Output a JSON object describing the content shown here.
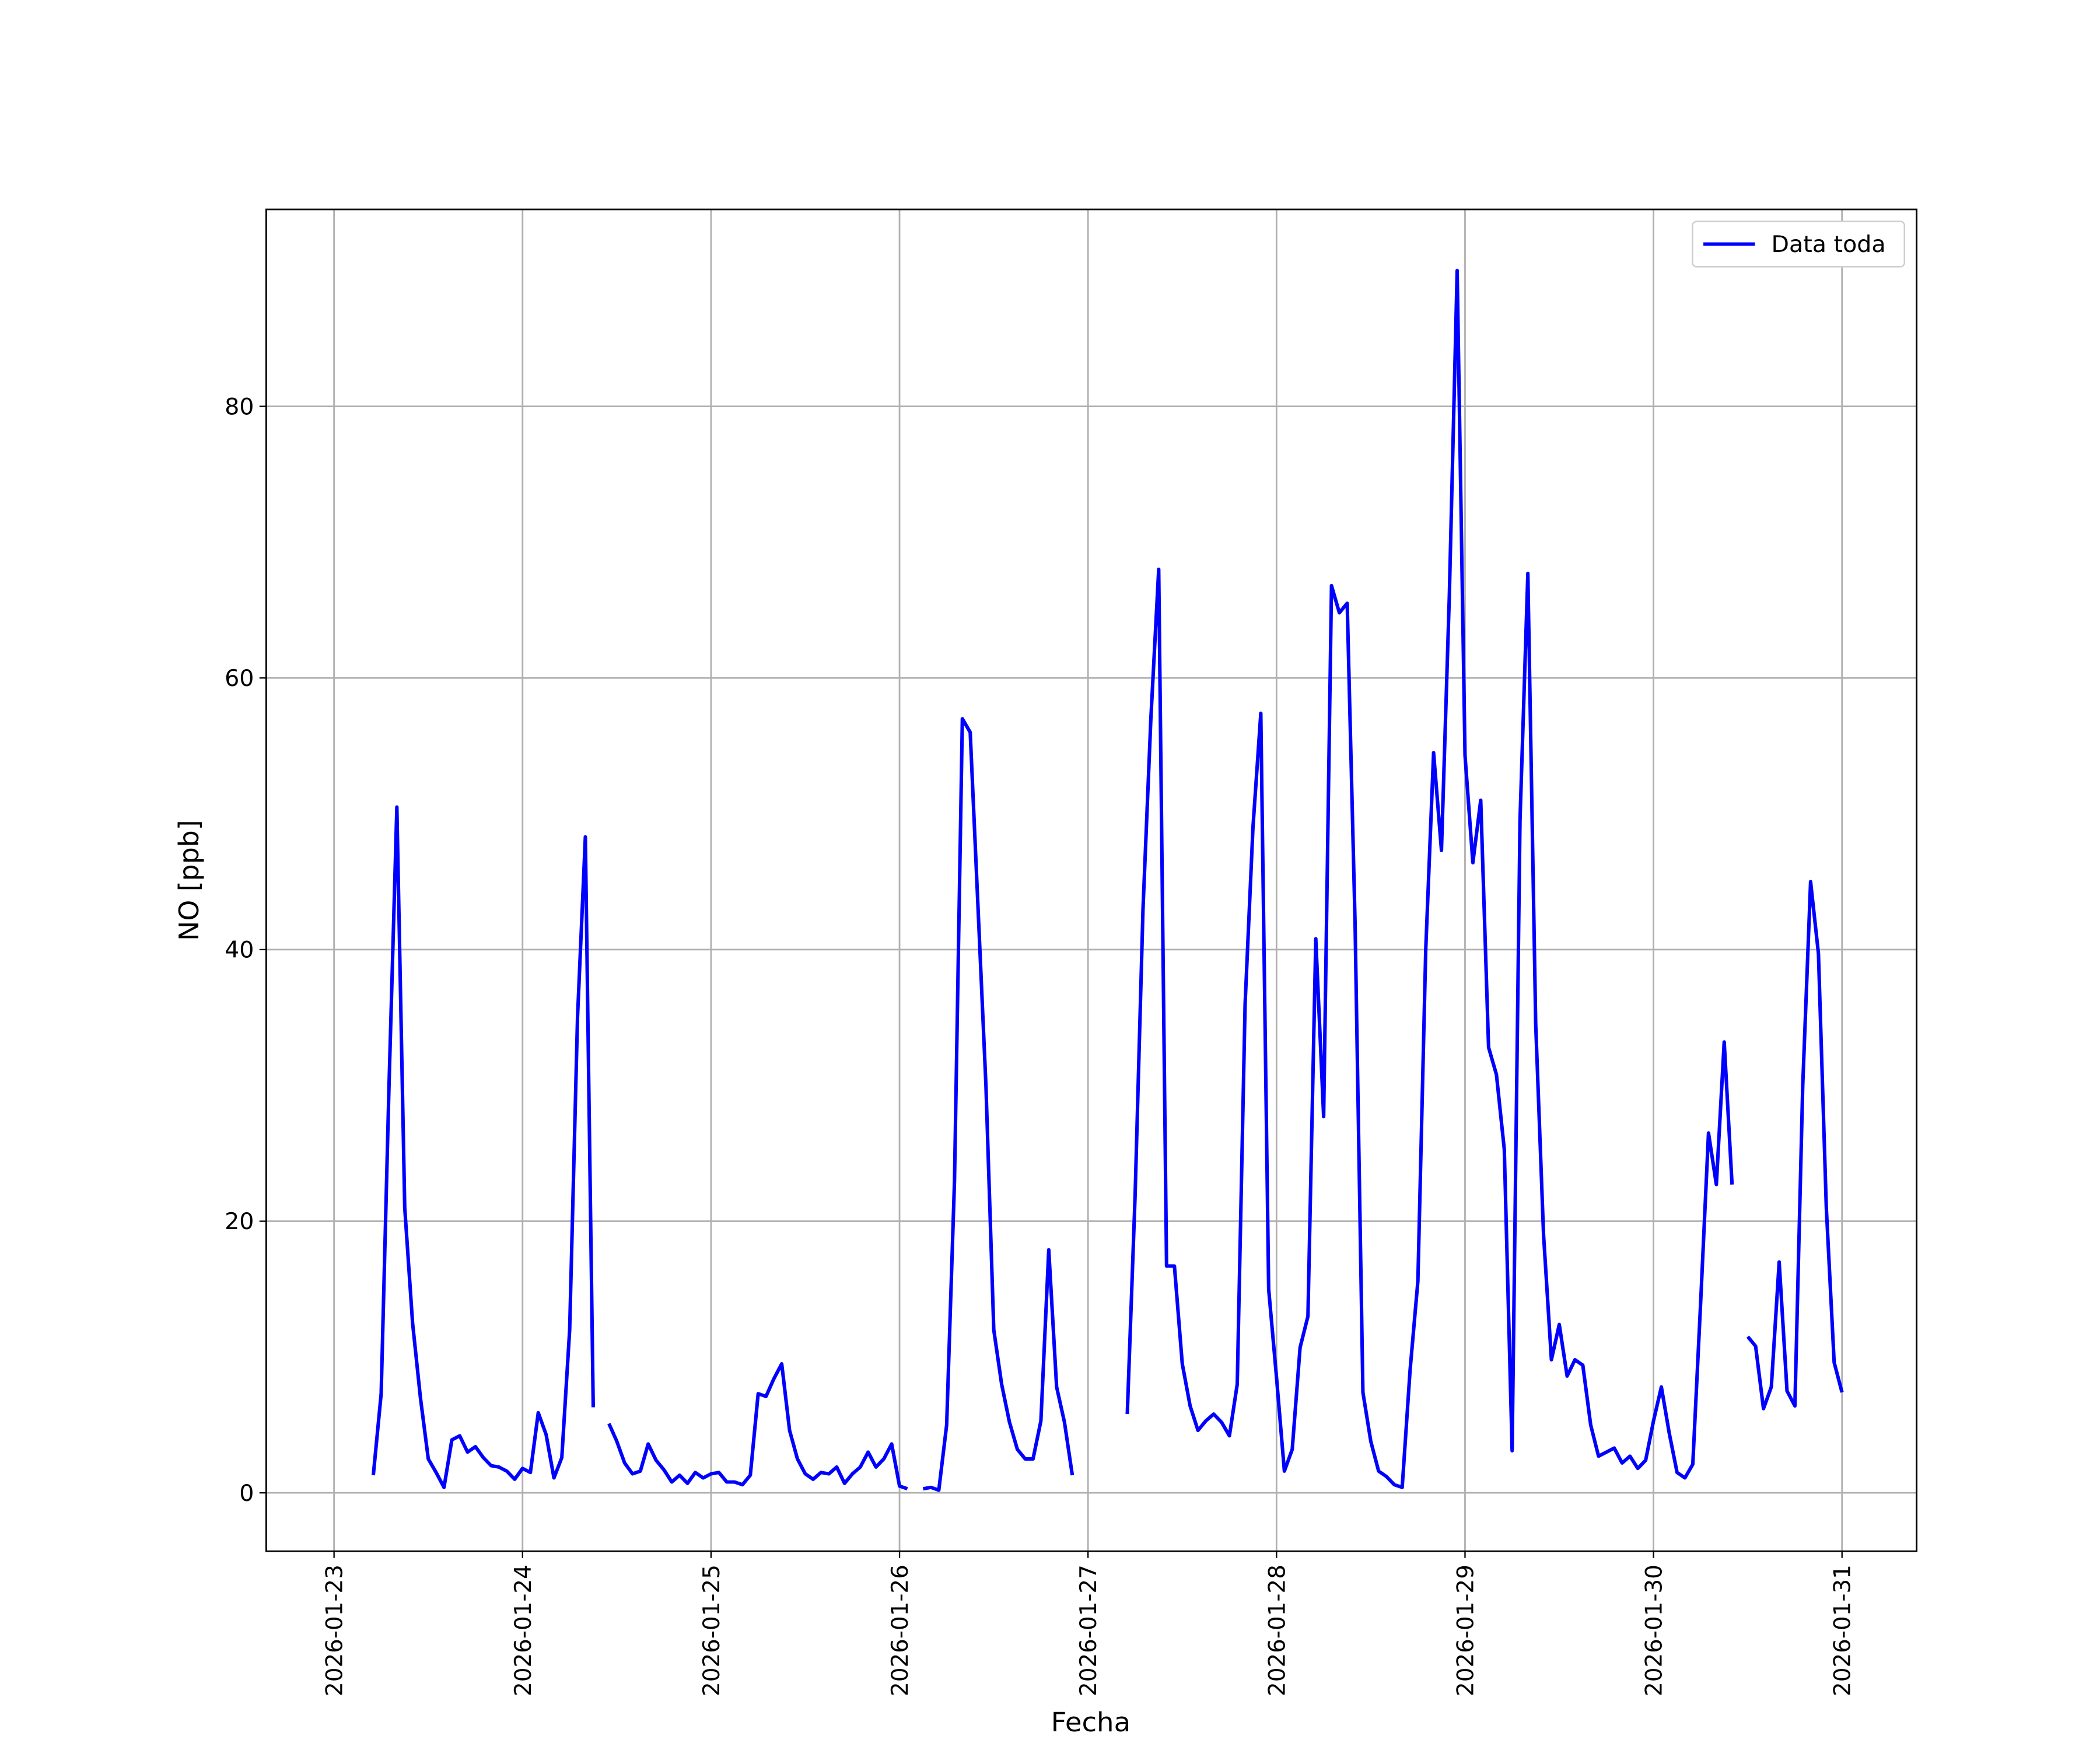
{
  "chart_data": {
    "type": "line",
    "xlabel": "Fecha",
    "ylabel": "NO [ppb]",
    "x": [
      "2026-01-23 05:00",
      "2026-01-23 06:00",
      "2026-01-23 07:00",
      "2026-01-23 08:00",
      "2026-01-23 09:00",
      "2026-01-23 10:00",
      "2026-01-23 11:00",
      "2026-01-23 12:00",
      "2026-01-23 13:00",
      "2026-01-23 14:00",
      "2026-01-23 15:00",
      "2026-01-23 16:00",
      "2026-01-23 17:00",
      "2026-01-23 18:00",
      "2026-01-23 19:00",
      "2026-01-23 20:00",
      "2026-01-23 21:00",
      "2026-01-23 22:00",
      "2026-01-23 23:00",
      "2026-01-24 00:00",
      "2026-01-24 01:00",
      "2026-01-24 02:00",
      "2026-01-24 03:00",
      "2026-01-24 04:00",
      "2026-01-24 05:00",
      "2026-01-24 06:00",
      "2026-01-24 07:00",
      "2026-01-24 08:00",
      "2026-01-24 09:00",
      "2026-01-24 10:00",
      "2026-01-24 11:00",
      "2026-01-24 12:00",
      "2026-01-24 13:00",
      "2026-01-24 14:00",
      "2026-01-24 15:00",
      "2026-01-24 16:00",
      "2026-01-24 17:00",
      "2026-01-24 18:00",
      "2026-01-24 19:00",
      "2026-01-24 20:00",
      "2026-01-24 21:00",
      "2026-01-24 22:00",
      "2026-01-24 23:00",
      "2026-01-25 00:00",
      "2026-01-25 01:00",
      "2026-01-25 02:00",
      "2026-01-25 03:00",
      "2026-01-25 04:00",
      "2026-01-25 05:00",
      "2026-01-25 06:00",
      "2026-01-25 07:00",
      "2026-01-25 08:00",
      "2026-01-25 09:00",
      "2026-01-25 10:00",
      "2026-01-25 11:00",
      "2026-01-25 12:00",
      "2026-01-25 13:00",
      "2026-01-25 14:00",
      "2026-01-25 15:00",
      "2026-01-25 16:00",
      "2026-01-25 17:00",
      "2026-01-25 18:00",
      "2026-01-25 19:00",
      "2026-01-25 20:00",
      "2026-01-25 21:00",
      "2026-01-25 22:00",
      "2026-01-25 23:00",
      "2026-01-26 00:00",
      "2026-01-26 01:00",
      "2026-01-26 02:00",
      "2026-01-26 03:00",
      "2026-01-26 04:00",
      "2026-01-26 05:00",
      "2026-01-26 06:00",
      "2026-01-26 07:00",
      "2026-01-26 08:00",
      "2026-01-26 09:00",
      "2026-01-26 10:00",
      "2026-01-26 11:00",
      "2026-01-26 12:00",
      "2026-01-26 13:00",
      "2026-01-26 14:00",
      "2026-01-26 15:00",
      "2026-01-26 16:00",
      "2026-01-26 17:00",
      "2026-01-26 18:00",
      "2026-01-26 19:00",
      "2026-01-26 20:00",
      "2026-01-26 21:00",
      "2026-01-26 22:00",
      "2026-01-26 23:00",
      "2026-01-27 00:00",
      "2026-01-27 01:00",
      "2026-01-27 02:00",
      "2026-01-27 03:00",
      "2026-01-27 04:00",
      "2026-01-27 05:00",
      "2026-01-27 06:00",
      "2026-01-27 07:00",
      "2026-01-27 08:00",
      "2026-01-27 09:00",
      "2026-01-27 10:00",
      "2026-01-27 11:00",
      "2026-01-27 12:00",
      "2026-01-27 13:00",
      "2026-01-27 14:00",
      "2026-01-27 15:00",
      "2026-01-27 16:00",
      "2026-01-27 17:00",
      "2026-01-27 18:00",
      "2026-01-27 19:00",
      "2026-01-27 20:00",
      "2026-01-27 21:00",
      "2026-01-27 22:00",
      "2026-01-27 23:00",
      "2026-01-28 00:00",
      "2026-01-28 01:00",
      "2026-01-28 02:00",
      "2026-01-28 03:00",
      "2026-01-28 04:00",
      "2026-01-28 05:00",
      "2026-01-28 06:00",
      "2026-01-28 07:00",
      "2026-01-28 08:00",
      "2026-01-28 09:00",
      "2026-01-28 10:00",
      "2026-01-28 11:00",
      "2026-01-28 12:00",
      "2026-01-28 13:00",
      "2026-01-28 14:00",
      "2026-01-28 15:00",
      "2026-01-28 16:00",
      "2026-01-28 17:00",
      "2026-01-28 18:00",
      "2026-01-28 19:00",
      "2026-01-28 20:00",
      "2026-01-28 21:00",
      "2026-01-28 22:00",
      "2026-01-28 23:00",
      "2026-01-29 00:00",
      "2026-01-29 01:00",
      "2026-01-29 02:00",
      "2026-01-29 03:00",
      "2026-01-29 04:00",
      "2026-01-29 05:00",
      "2026-01-29 06:00",
      "2026-01-29 07:00",
      "2026-01-29 08:00",
      "2026-01-29 09:00",
      "2026-01-29 10:00",
      "2026-01-29 11:00",
      "2026-01-29 12:00",
      "2026-01-29 13:00",
      "2026-01-29 14:00",
      "2026-01-29 15:00",
      "2026-01-29 16:00",
      "2026-01-29 17:00",
      "2026-01-29 18:00",
      "2026-01-29 19:00",
      "2026-01-29 20:00",
      "2026-01-29 21:00",
      "2026-01-29 22:00",
      "2026-01-29 23:00",
      "2026-01-30 00:00",
      "2026-01-30 01:00",
      "2026-01-30 02:00",
      "2026-01-30 03:00",
      "2026-01-30 04:00",
      "2026-01-30 05:00",
      "2026-01-30 06:00",
      "2026-01-30 07:00",
      "2026-01-30 08:00",
      "2026-01-30 09:00",
      "2026-01-30 10:00",
      "2026-01-30 11:00",
      "2026-01-30 12:00",
      "2026-01-30 13:00",
      "2026-01-30 14:00",
      "2026-01-30 15:00",
      "2026-01-30 16:00",
      "2026-01-30 17:00",
      "2026-01-30 18:00",
      "2026-01-30 19:00",
      "2026-01-30 20:00",
      "2026-01-30 21:00",
      "2026-01-30 22:00",
      "2026-01-30 23:00",
      "2026-01-31 00:00"
    ],
    "series": [
      {
        "name": "Data toda",
        "color": "#0000ff",
        "values": [
          1.3,
          7.3,
          30,
          50.5,
          21,
          12.5,
          7,
          2.5,
          1.5,
          0.4,
          3.9,
          4.2,
          3,
          3.4,
          2.6,
          2.0,
          1.9,
          1.6,
          1.0,
          1.8,
          1.5,
          5.9,
          4.3,
          1.1,
          2.6,
          12,
          35,
          48.3,
          6.3,
          null,
          5.1,
          3.8,
          2.2,
          1.4,
          1.6,
          3.6,
          2.4,
          1.7,
          0.8,
          1.3,
          0.7,
          1.5,
          1.1,
          1.4,
          1.5,
          0.8,
          0.8,
          0.6,
          1.3,
          7.3,
          7.1,
          8.4,
          9.5,
          4.6,
          2.5,
          1.4,
          1.0,
          1.5,
          1.4,
          1.9,
          0.7,
          1.4,
          1.9,
          3.0,
          1.9,
          2.5,
          3.6,
          0.5,
          0.3,
          null,
          0.3,
          0.4,
          0.2,
          5.0,
          23,
          57,
          56,
          43,
          30,
          12,
          8,
          5.2,
          3.2,
          2.5,
          2.5,
          5.3,
          17.9,
          7.8,
          5.2,
          1.3,
          null,
          null,
          null,
          null,
          null,
          null,
          5.8,
          22,
          43,
          57,
          68,
          16.7,
          16.7,
          9.5,
          6.4,
          4.6,
          5.3,
          5.8,
          5.2,
          4.2,
          8,
          36,
          49,
          57.4,
          15,
          8.5,
          1.6,
          3.2,
          10.7,
          13,
          40.8,
          27.7,
          66.8,
          64.8,
          65.5,
          42,
          7.4,
          3.8,
          1.6,
          1.2,
          0.6,
          0.4,
          9,
          15.6,
          40,
          54.5,
          47.3,
          66,
          90,
          54.3,
          46.4,
          51,
          32.8,
          30.8,
          25.3,
          3.1,
          49.5,
          67.7,
          34.5,
          19,
          9.8,
          12.4,
          8.6,
          9.8,
          9.4,
          5,
          2.7,
          3,
          3.3,
          2.2,
          2.7,
          1.8,
          2.4,
          5.3,
          7.8,
          4.4,
          1.5,
          1.1,
          2.1,
          14,
          26.5,
          22.7,
          33.2,
          22.7,
          null,
          11.5,
          10.8,
          6.2,
          7.8,
          17,
          7.5,
          6.4,
          30,
          45,
          39.7,
          21,
          9.6,
          7.4
        ]
      }
    ],
    "xlim": [
      "2026-01-22 15:22",
      "2026-01-31 09:30"
    ],
    "xticks": [
      "2026-01-23",
      "2026-01-24",
      "2026-01-25",
      "2026-01-26",
      "2026-01-27",
      "2026-01-28",
      "2026-01-29",
      "2026-01-30",
      "2026-01-31"
    ],
    "ylim": [
      -4.3,
      94.5
    ],
    "yticks": [
      0,
      20,
      40,
      60,
      80
    ],
    "grid": true,
    "legend": "upper right"
  }
}
